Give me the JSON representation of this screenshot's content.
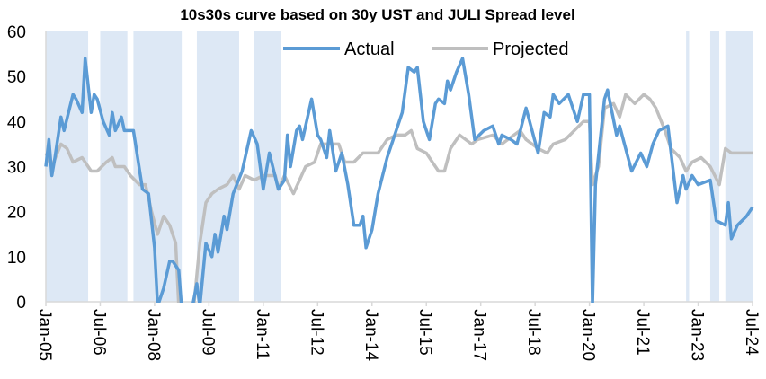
{
  "chart_data": {
    "type": "line",
    "title": "10s30s curve based on 30y UST and JULI Spread level",
    "xlabel": "",
    "ylabel": "",
    "ylim": [
      0,
      60
    ],
    "yticks": [
      "0",
      "10",
      "20",
      "30",
      "40",
      "50",
      "60"
    ],
    "xlim": [
      "2005-01",
      "2024-07"
    ],
    "xticks": [
      "Jan-05",
      "Jul-06",
      "Jan-08",
      "Jul-09",
      "Jan-11",
      "Jul-12",
      "Jan-14",
      "Jul-15",
      "Jan-17",
      "Jul-18",
      "Jan-20",
      "Jul-21",
      "Jan-23",
      "Jul-24"
    ],
    "grid": false,
    "legend_position": "top",
    "colors": {
      "actual": "#5B9BD5",
      "projected": "#BFBFBF",
      "shading": "#DDE8F5",
      "axis": "#D9D9D9"
    },
    "shaded_periods": [
      [
        "2005-01",
        "2006-03"
      ],
      [
        "2006-07",
        "2007-04"
      ],
      [
        "2007-06",
        "2008-10"
      ],
      [
        "2009-03",
        "2010-05"
      ],
      [
        "2010-10",
        "2011-07"
      ],
      [
        "2022-09",
        "2022-10"
      ],
      [
        "2023-05",
        "2023-08"
      ],
      [
        "2023-10",
        "2024-07"
      ]
    ],
    "series": [
      {
        "name": "Actual",
        "points": [
          [
            "2005-01",
            30
          ],
          [
            "2005-02",
            36
          ],
          [
            "2005-03",
            28
          ],
          [
            "2005-04",
            32
          ],
          [
            "2005-06",
            41
          ],
          [
            "2005-07",
            38
          ],
          [
            "2005-10",
            46
          ],
          [
            "2005-11",
            45
          ],
          [
            "2006-01",
            42
          ],
          [
            "2006-02",
            54
          ],
          [
            "2006-04",
            42
          ],
          [
            "2006-05",
            46
          ],
          [
            "2006-06",
            45
          ],
          [
            "2006-08",
            40
          ],
          [
            "2006-10",
            37
          ],
          [
            "2006-11",
            42
          ],
          [
            "2006-12",
            38
          ],
          [
            "2007-02",
            41
          ],
          [
            "2007-03",
            38
          ],
          [
            "2007-06",
            38
          ],
          [
            "2007-09",
            25
          ],
          [
            "2007-11",
            24
          ],
          [
            "2008-01",
            12
          ],
          [
            "2008-02",
            -1
          ],
          [
            "2008-04",
            3
          ],
          [
            "2008-06",
            9
          ],
          [
            "2008-07",
            9
          ],
          [
            "2008-09",
            7
          ],
          [
            "2008-10",
            -2
          ],
          [
            "2009-01",
            -3
          ],
          [
            "2009-03",
            4
          ],
          [
            "2009-04",
            -1
          ],
          [
            "2009-06",
            13
          ],
          [
            "2009-08",
            10
          ],
          [
            "2009-09",
            15
          ],
          [
            "2009-10",
            11
          ],
          [
            "2009-12",
            19
          ],
          [
            "2010-01",
            16
          ],
          [
            "2010-03",
            24
          ],
          [
            "2010-06",
            29
          ],
          [
            "2010-09",
            38
          ],
          [
            "2010-11",
            35
          ],
          [
            "2011-01",
            25
          ],
          [
            "2011-03",
            33
          ],
          [
            "2011-06",
            25
          ],
          [
            "2011-08",
            27
          ],
          [
            "2011-09",
            37
          ],
          [
            "2011-10",
            30
          ],
          [
            "2011-12",
            38
          ],
          [
            "2012-01",
            39
          ],
          [
            "2012-02",
            36
          ],
          [
            "2012-05",
            45
          ],
          [
            "2012-07",
            37
          ],
          [
            "2012-08",
            36
          ],
          [
            "2012-10",
            32
          ],
          [
            "2012-11",
            38
          ],
          [
            "2013-01",
            29
          ],
          [
            "2013-03",
            33
          ],
          [
            "2013-05",
            26
          ],
          [
            "2013-07",
            17
          ],
          [
            "2013-09",
            17
          ],
          [
            "2013-10",
            19
          ],
          [
            "2013-11",
            12
          ],
          [
            "2014-01",
            16
          ],
          [
            "2014-03",
            24
          ],
          [
            "2014-06",
            32
          ],
          [
            "2014-08",
            36
          ],
          [
            "2014-11",
            42
          ],
          [
            "2015-01",
            52
          ],
          [
            "2015-03",
            51
          ],
          [
            "2015-04",
            52
          ],
          [
            "2015-06",
            40
          ],
          [
            "2015-08",
            36
          ],
          [
            "2015-10",
            44
          ],
          [
            "2015-11",
            45
          ],
          [
            "2016-01",
            44
          ],
          [
            "2016-02",
            49
          ],
          [
            "2016-03",
            47
          ],
          [
            "2016-05",
            51
          ],
          [
            "2016-07",
            54
          ],
          [
            "2016-09",
            46
          ],
          [
            "2016-11",
            36
          ],
          [
            "2017-02",
            38
          ],
          [
            "2017-05",
            39
          ],
          [
            "2017-07",
            35
          ],
          [
            "2017-08",
            37
          ],
          [
            "2017-11",
            36
          ],
          [
            "2018-01",
            35
          ],
          [
            "2018-04",
            43
          ],
          [
            "2018-08",
            33
          ],
          [
            "2018-10",
            42
          ],
          [
            "2018-12",
            41
          ],
          [
            "2019-01",
            46
          ],
          [
            "2019-03",
            44
          ],
          [
            "2019-06",
            46
          ],
          [
            "2019-08",
            42
          ],
          [
            "2019-09",
            40
          ],
          [
            "2019-11",
            46
          ],
          [
            "2020-01",
            46
          ],
          [
            "2020-02",
            -1
          ],
          [
            "2020-03",
            26
          ],
          [
            "2020-06",
            45
          ],
          [
            "2020-07",
            47
          ],
          [
            "2020-10",
            37
          ],
          [
            "2020-11",
            39
          ],
          [
            "2021-03",
            29
          ],
          [
            "2021-06",
            33
          ],
          [
            "2021-08",
            30
          ],
          [
            "2021-10",
            35
          ],
          [
            "2021-12",
            38
          ],
          [
            "2022-03",
            39
          ],
          [
            "2022-06",
            22
          ],
          [
            "2022-08",
            28
          ],
          [
            "2022-09",
            25
          ],
          [
            "2022-11",
            28
          ],
          [
            "2023-01",
            26
          ],
          [
            "2023-05",
            27
          ],
          [
            "2023-07",
            18
          ],
          [
            "2023-10",
            17
          ],
          [
            "2023-11",
            22
          ],
          [
            "2023-12",
            14
          ],
          [
            "2024-02",
            17
          ],
          [
            "2024-05",
            19
          ],
          [
            "2024-07",
            21
          ]
        ]
      },
      {
        "name": "Projected",
        "points": [
          [
            "2005-01",
            33
          ],
          [
            "2005-03",
            30
          ],
          [
            "2005-06",
            35
          ],
          [
            "2005-08",
            34
          ],
          [
            "2005-10",
            31
          ],
          [
            "2006-01",
            32
          ],
          [
            "2006-04",
            29
          ],
          [
            "2006-06",
            29
          ],
          [
            "2006-09",
            31
          ],
          [
            "2006-11",
            32
          ],
          [
            "2006-12",
            30
          ],
          [
            "2007-03",
            30
          ],
          [
            "2007-05",
            28
          ],
          [
            "2007-08",
            26
          ],
          [
            "2007-10",
            26
          ],
          [
            "2007-12",
            20
          ],
          [
            "2008-02",
            15
          ],
          [
            "2008-04",
            19
          ],
          [
            "2008-06",
            17
          ],
          [
            "2008-08",
            13
          ],
          [
            "2008-09",
            -1
          ],
          [
            "2009-02",
            -1
          ],
          [
            "2009-04",
            13
          ],
          [
            "2009-06",
            22
          ],
          [
            "2009-08",
            24
          ],
          [
            "2009-10",
            25
          ],
          [
            "2010-01",
            26
          ],
          [
            "2010-03",
            28
          ],
          [
            "2010-05",
            25
          ],
          [
            "2010-07",
            28
          ],
          [
            "2010-10",
            27
          ],
          [
            "2011-01",
            28
          ],
          [
            "2011-05",
            28
          ],
          [
            "2011-06",
            25
          ],
          [
            "2011-08",
            28
          ],
          [
            "2011-11",
            24
          ],
          [
            "2012-03",
            30
          ],
          [
            "2012-06",
            31
          ],
          [
            "2012-08",
            35
          ],
          [
            "2012-11",
            35
          ],
          [
            "2013-02",
            35
          ],
          [
            "2013-04",
            31
          ],
          [
            "2013-07",
            31
          ],
          [
            "2013-10",
            33
          ],
          [
            "2014-03",
            33
          ],
          [
            "2014-06",
            36
          ],
          [
            "2014-09",
            37
          ],
          [
            "2014-12",
            37
          ],
          [
            "2015-02",
            38
          ],
          [
            "2015-04",
            34
          ],
          [
            "2015-07",
            33
          ],
          [
            "2015-09",
            31
          ],
          [
            "2015-11",
            29
          ],
          [
            "2016-01",
            29
          ],
          [
            "2016-03",
            34
          ],
          [
            "2016-06",
            37
          ],
          [
            "2016-08",
            36
          ],
          [
            "2016-10",
            35
          ],
          [
            "2016-12",
            36
          ],
          [
            "2017-05",
            37
          ],
          [
            "2017-08",
            35
          ],
          [
            "2017-12",
            37
          ],
          [
            "2018-02",
            38
          ],
          [
            "2018-04",
            36
          ],
          [
            "2018-08",
            34
          ],
          [
            "2018-11",
            33
          ],
          [
            "2019-01",
            35
          ],
          [
            "2019-05",
            36
          ],
          [
            "2019-08",
            38
          ],
          [
            "2019-11",
            40
          ],
          [
            "2020-01",
            40
          ],
          [
            "2020-02",
            26
          ],
          [
            "2020-04",
            30
          ],
          [
            "2020-06",
            43
          ],
          [
            "2020-09",
            44
          ],
          [
            "2020-11",
            41
          ],
          [
            "2021-01",
            46
          ],
          [
            "2021-04",
            44
          ],
          [
            "2021-07",
            46
          ],
          [
            "2021-09",
            45
          ],
          [
            "2021-11",
            43
          ],
          [
            "2022-02",
            38
          ],
          [
            "2022-04",
            34
          ],
          [
            "2022-07",
            32
          ],
          [
            "2022-09",
            29
          ],
          [
            "2022-11",
            31
          ],
          [
            "2023-02",
            32
          ],
          [
            "2023-05",
            30
          ],
          [
            "2023-08",
            26
          ],
          [
            "2023-10",
            34
          ],
          [
            "2023-12",
            33
          ],
          [
            "2024-03",
            33
          ],
          [
            "2024-07",
            33
          ]
        ]
      }
    ]
  }
}
